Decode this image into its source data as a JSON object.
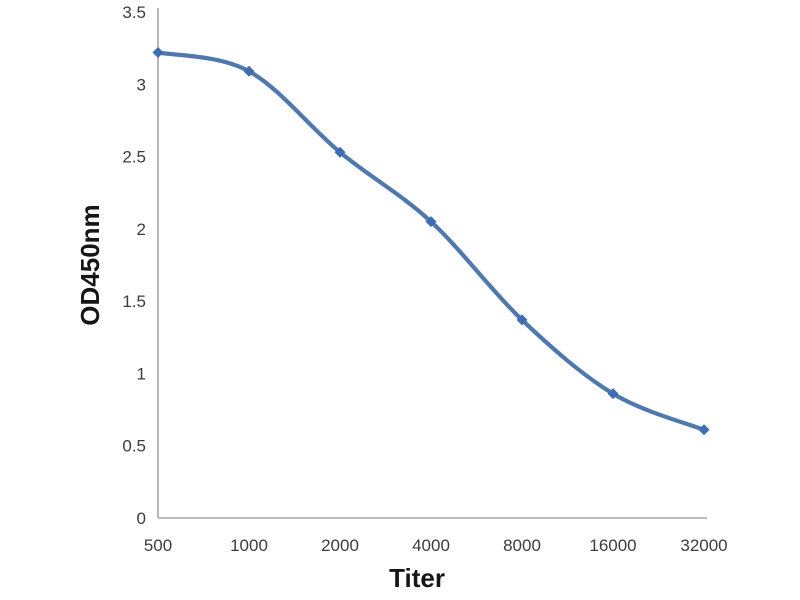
{
  "chart_data": {
    "type": "line",
    "title": "",
    "xlabel": "Titer",
    "ylabel": "OD450nm",
    "categories": [
      "500",
      "1000",
      "2000",
      "4000",
      "8000",
      "16000",
      "32000"
    ],
    "series": [
      {
        "name": "OD450nm",
        "values": [
          3.22,
          3.09,
          2.53,
          2.05,
          1.37,
          0.86,
          0.61
        ]
      }
    ],
    "ylim": [
      0,
      3.5
    ],
    "ytick_labels": [
      "0",
      "0.5",
      "1",
      "1.5",
      "2",
      "2.5",
      "3",
      "3.5"
    ],
    "grid": false,
    "legend": "none",
    "smooth_line": true,
    "marker": "diamond",
    "colors": {
      "line": "#4f79ae",
      "marker": "#3f6db4",
      "axis": "#a6a6a6",
      "tick_text": "#3d3d3d",
      "title_text": "#161616"
    }
  }
}
